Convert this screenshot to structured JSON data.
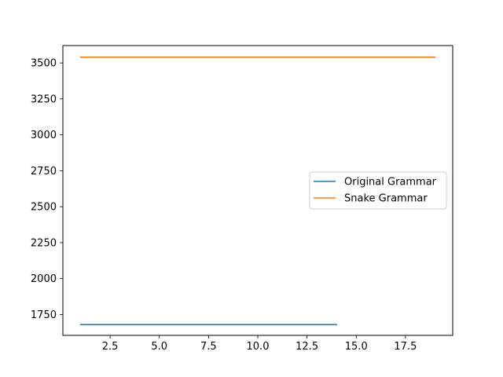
{
  "chart_data": {
    "type": "line",
    "title": "",
    "xlabel": "",
    "ylabel": "",
    "xlim": [
      0.1,
      19.9
    ],
    "ylim": [
      1605,
      3621
    ],
    "xticks": [
      2.5,
      5.0,
      7.5,
      10.0,
      12.5,
      15.0,
      17.5
    ],
    "xtick_labels": [
      "2.5",
      "5.0",
      "7.5",
      "10.0",
      "12.5",
      "15.0",
      "17.5"
    ],
    "yticks": [
      1750,
      2000,
      2250,
      2500,
      2750,
      3000,
      3250,
      3500
    ],
    "ytick_labels": [
      "1750",
      "2000",
      "2250",
      "2500",
      "2750",
      "3000",
      "3250",
      "3500"
    ],
    "grid": false,
    "legend_position": "center-right",
    "series": [
      {
        "name": "Original Grammar",
        "color": "#1f77b4",
        "x": [
          1,
          2,
          3,
          4,
          5,
          6,
          7,
          8,
          9,
          10,
          11,
          12,
          13,
          14
        ],
        "y": [
          1680,
          1680,
          1680,
          1680,
          1680,
          1680,
          1680,
          1680,
          1680,
          1680,
          1680,
          1680,
          1680,
          1680
        ]
      },
      {
        "name": "Snake Grammar",
        "color": "#ff7f0e",
        "x": [
          1,
          2,
          3,
          4,
          5,
          6,
          7,
          8,
          9,
          10,
          11,
          12,
          13,
          14,
          15,
          16,
          17,
          18,
          19
        ],
        "y": [
          3540,
          3540,
          3540,
          3540,
          3540,
          3540,
          3540,
          3540,
          3540,
          3540,
          3540,
          3540,
          3540,
          3540,
          3540,
          3540,
          3540,
          3540,
          3540
        ]
      }
    ]
  }
}
